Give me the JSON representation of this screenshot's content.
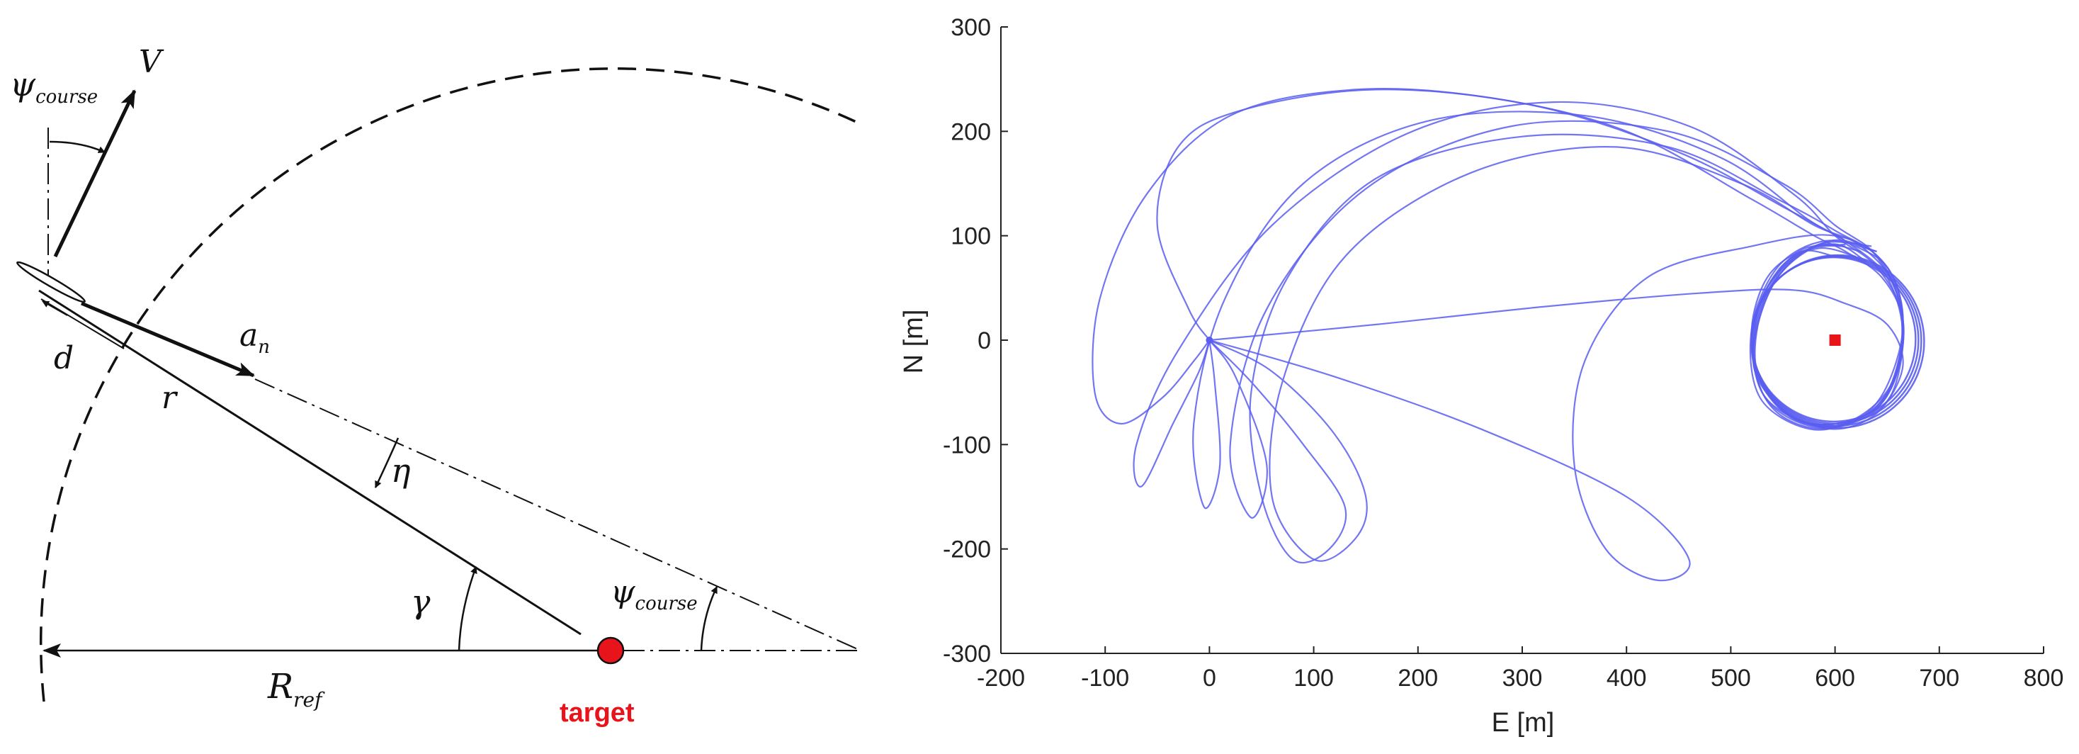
{
  "geometry_diagram": {
    "labels": {
      "psi_course_top": {
        "main": "ψ",
        "sub": "course"
      },
      "velocity": "V",
      "normal_accel": {
        "main": "a",
        "sub": "n"
      },
      "offset": "d",
      "range": "r",
      "eta": "η",
      "gamma": "γ",
      "psi_course_bottom": {
        "main": "ψ",
        "sub": "course"
      },
      "reference_radius": {
        "main": "R",
        "sub": "ref"
      },
      "target": "target"
    },
    "colors": {
      "target": "#e8141b",
      "lines": "#111111"
    }
  },
  "chart_data": {
    "type": "line",
    "title": "",
    "xlabel": "E [m]",
    "ylabel": "N [m]",
    "xlim": [
      -200,
      800
    ],
    "ylim": [
      -300,
      300
    ],
    "xticks": [
      "-200",
      "-100",
      "0",
      "100",
      "200",
      "300",
      "400",
      "500",
      "600",
      "700",
      "800"
    ],
    "yticks": [
      "300",
      "200",
      "100",
      "0",
      "-100",
      "-200",
      "-300"
    ],
    "grid": false,
    "line_color": "#5a5ef0",
    "target_marker": {
      "x": 600,
      "y": 0,
      "color": "#e8141b"
    },
    "loiter_circle": {
      "cx": 600,
      "cy": 0,
      "r": 80
    },
    "series": [
      {
        "x": [
          0,
          -15,
          -45,
          -85,
          -110,
          -105,
          -60,
          20,
          140,
          270,
          400,
          520,
          580,
          610,
          645,
          665,
          660,
          640,
          600,
          560,
          530,
          520,
          535,
          568,
          600
        ],
        "y": [
          0,
          -20,
          -55,
          -80,
          -50,
          40,
          140,
          215,
          240,
          232,
          200,
          135,
          100,
          85,
          60,
          20,
          -30,
          -65,
          -80,
          -75,
          -40,
          10,
          60,
          85,
          80
        ]
      },
      {
        "x": [
          0,
          -10,
          -35,
          -65,
          -70,
          -30,
          60,
          190,
          330,
          460,
          560,
          600,
          640,
          665,
          655,
          620,
          575,
          530,
          522,
          548,
          585,
          620
        ],
        "y": [
          0,
          -30,
          -80,
          -140,
          -100,
          -10,
          110,
          198,
          228,
          205,
          140,
          100,
          70,
          20,
          -50,
          -78,
          -80,
          -50,
          15,
          70,
          88,
          80
        ]
      },
      {
        "x": [
          0,
          5,
          10,
          -5,
          -15,
          15,
          90,
          210,
          360,
          490,
          575,
          610,
          650,
          665,
          645,
          600,
          555,
          525,
          530,
          560,
          600,
          630
        ],
        "y": [
          0,
          -40,
          -120,
          -160,
          -80,
          40,
          150,
          210,
          215,
          175,
          115,
          95,
          60,
          0,
          -60,
          -80,
          -72,
          -30,
          30,
          78,
          92,
          75
        ]
      },
      {
        "x": [
          0,
          25,
          55,
          40,
          20,
          55,
          150,
          290,
          440,
          550,
          600,
          640,
          665,
          650,
          610,
          560,
          525,
          528,
          565,
          610
        ],
        "y": [
          0,
          -35,
          -120,
          -170,
          -100,
          30,
          145,
          205,
          200,
          150,
          110,
          80,
          20,
          -50,
          -80,
          -75,
          -30,
          35,
          85,
          90
        ]
      },
      {
        "x": [
          0,
          40,
          90,
          130,
          115,
          80,
          50,
          40,
          75,
          160,
          300,
          440,
          545,
          600,
          645,
          665,
          645,
          600,
          555,
          522,
          535,
          580,
          625
        ],
        "y": [
          0,
          -40,
          -100,
          -160,
          -200,
          -210,
          -150,
          -50,
          60,
          155,
          195,
          185,
          135,
          105,
          75,
          10,
          -60,
          -82,
          -70,
          -25,
          45,
          90,
          85
        ]
      },
      {
        "x": [
          0,
          60,
          120,
          150,
          140,
          100,
          60,
          70,
          130,
          250,
          390,
          510,
          580,
          625,
          660,
          660,
          625,
          575,
          530,
          525,
          560,
          610
        ],
        "y": [
          0,
          -30,
          -90,
          -150,
          -190,
          -210,
          -150,
          -40,
          80,
          160,
          185,
          150,
          110,
          90,
          45,
          -30,
          -75,
          -82,
          -50,
          20,
          80,
          92
        ]
      },
      {
        "x": [
          0,
          120,
          260,
          400,
          460,
          430,
          380,
          350,
          360,
          420,
          520,
          600,
          650,
          665,
          640,
          590,
          540,
          522,
          545,
          595,
          640
        ],
        "y": [
          0,
          -35,
          -85,
          -150,
          -210,
          -230,
          -200,
          -120,
          -20,
          60,
          90,
          100,
          70,
          10,
          -60,
          -85,
          -65,
          -10,
          60,
          95,
          85
        ]
      },
      {
        "x": [
          0,
          160,
          320,
          470,
          560,
          610,
          650,
          665,
          640,
          595,
          545,
          520,
          538,
          585,
          635
        ],
        "y": [
          0,
          15,
          32,
          45,
          48,
          35,
          15,
          -25,
          -70,
          -85,
          -62,
          -10,
          55,
          92,
          90
        ]
      },
      {
        "x": [
          0,
          -20,
          -50,
          -30,
          30,
          160,
          310,
          450,
          555,
          610,
          650,
          665,
          655,
          620,
          575,
          528,
          520,
          545,
          590,
          640
        ],
        "y": [
          0,
          30,
          110,
          185,
          220,
          240,
          225,
          180,
          125,
          95,
          70,
          20,
          -40,
          -75,
          -85,
          -55,
          10,
          70,
          95,
          85
        ]
      }
    ]
  }
}
